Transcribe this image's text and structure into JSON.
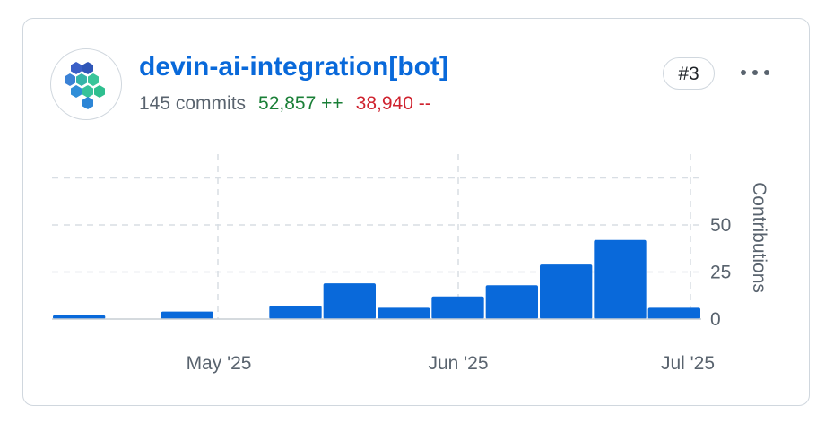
{
  "contributor": {
    "name": "devin-ai-integration[bot]",
    "commits_text": "145 commits",
    "additions_text": "52,857 ++",
    "deletions_text": "38,940 --",
    "rank": "#3",
    "avatar_icon": "hexagon-cluster-logo",
    "more_icon": "kebab-horizontal-icon"
  },
  "colors": {
    "bar": "#0969da",
    "link": "#0969da",
    "additions": "#1a7f37",
    "deletions": "#cf222e",
    "grid": "#d8dee4",
    "muted": "#59636e"
  },
  "chart_data": {
    "type": "bar",
    "x_tick_labels": [
      "May '25",
      "Jun '25",
      "Jul '25"
    ],
    "y_tick_labels": [
      "0",
      "25",
      "50"
    ],
    "ylabel": "Contributions",
    "ylim": [
      0,
      75
    ],
    "grid": true,
    "series": [
      {
        "values": [
          2,
          0,
          4,
          0,
          7,
          19,
          6,
          12,
          18,
          29,
          42,
          6
        ]
      }
    ]
  }
}
